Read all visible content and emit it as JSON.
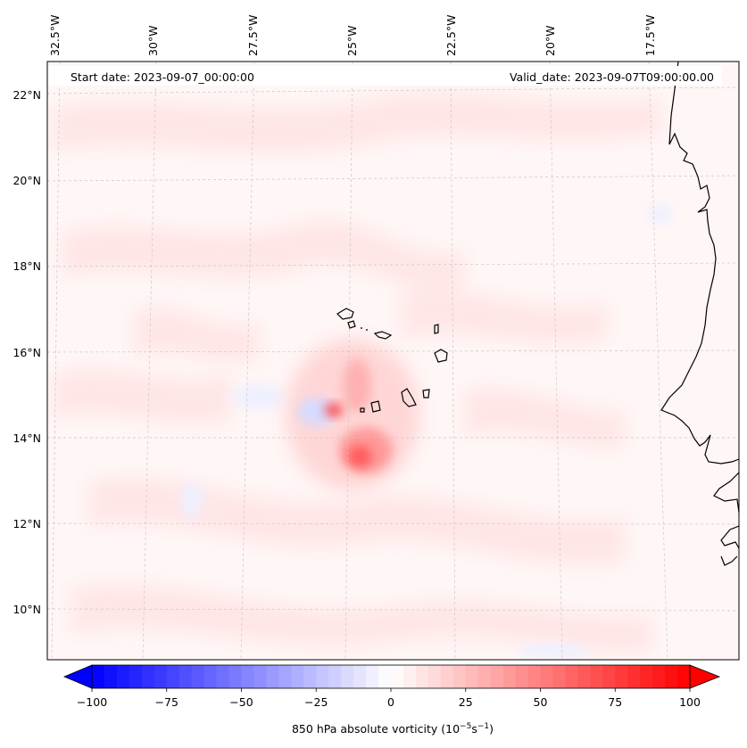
{
  "map": {
    "start_label": "Start date: 2023-09-07_00:00:00",
    "valid_label": "Valid_date: 2023-09-07T09:00:00.00",
    "variable": "850 hPa absolute vorticity",
    "lon_labels": [
      "32.5°W",
      "30°W",
      "27.5°W",
      "25°W",
      "22.5°W",
      "20°W",
      "17.5°W"
    ],
    "lat_labels": [
      "22°N",
      "20°N",
      "18°N",
      "16°N",
      "14°N",
      "12°N",
      "10°N"
    ],
    "extent": {
      "lon_min": -32.5,
      "lon_max": -16.2,
      "lat_min": 8.9,
      "lat_max": 22.8
    },
    "vorticity_maxima": [
      {
        "lon": -24.8,
        "lat": 14.65,
        "value": 55
      },
      {
        "lon": -24.5,
        "lat": 13.6,
        "value": 45
      },
      {
        "lon": -24.4,
        "lat": 15.2,
        "value": 25
      }
    ],
    "vorticity_minima": [
      {
        "lon": -25.6,
        "lat": 14.5,
        "value": -15
      }
    ],
    "colors": {
      "negative_max": "#0000ff",
      "zero": "#ffffff",
      "positive_max": "#ff0000",
      "coastline": "#000000",
      "gridline": "#cccccc"
    }
  },
  "colorbar": {
    "label": "850 hPa absolute vorticity (10",
    "unit_exp1": "−5",
    "unit_mid": "s",
    "unit_exp2": "−1",
    "unit_close": ")",
    "min": -100,
    "max": 100,
    "ticks": [
      "−100",
      "−75",
      "−50",
      "−25",
      "0",
      "25",
      "50",
      "75",
      "100"
    ],
    "levels": 48
  }
}
